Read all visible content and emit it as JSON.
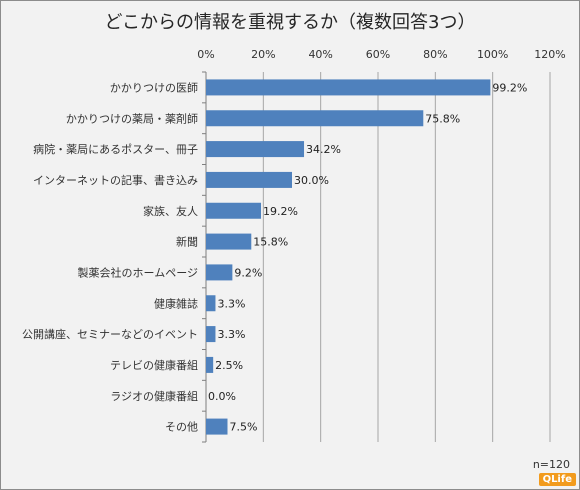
{
  "chart_data": {
    "type": "bar",
    "orientation": "horizontal",
    "title": "どこからの情報を重視するか（複数回答3つ）",
    "categories": [
      "かかりつけの医師",
      "かかりつけの薬局・薬剤師",
      "病院・薬局にあるポスター、冊子",
      "インターネットの記事、書き込み",
      "家族、友人",
      "新聞",
      "製薬会社のホームページ",
      "健康雑誌",
      "公開講座、セミナーなどのイベント",
      "テレビの健康番組",
      "ラジオの健康番組",
      "その他"
    ],
    "values": [
      99.2,
      75.8,
      34.2,
      30.0,
      19.2,
      15.8,
      9.2,
      3.3,
      3.3,
      2.5,
      0.0,
      7.5
    ],
    "value_labels": [
      "99.2%",
      "75.8%",
      "34.2%",
      "30.0%",
      "19.2%",
      "15.8%",
      "9.2%",
      "3.3%",
      "3.3%",
      "2.5%",
      "0.0%",
      "7.5%"
    ],
    "xlim": [
      0,
      120
    ],
    "ticks": [
      0,
      20,
      40,
      60,
      80,
      100,
      120
    ],
    "tick_labels": [
      "0%",
      "20%",
      "40%",
      "60%",
      "80%",
      "100%",
      "120%"
    ],
    "xaxis_position": "top",
    "grid": true,
    "bar_color": "#4f81bd"
  },
  "note": "n=120",
  "logo_text": "QLife"
}
